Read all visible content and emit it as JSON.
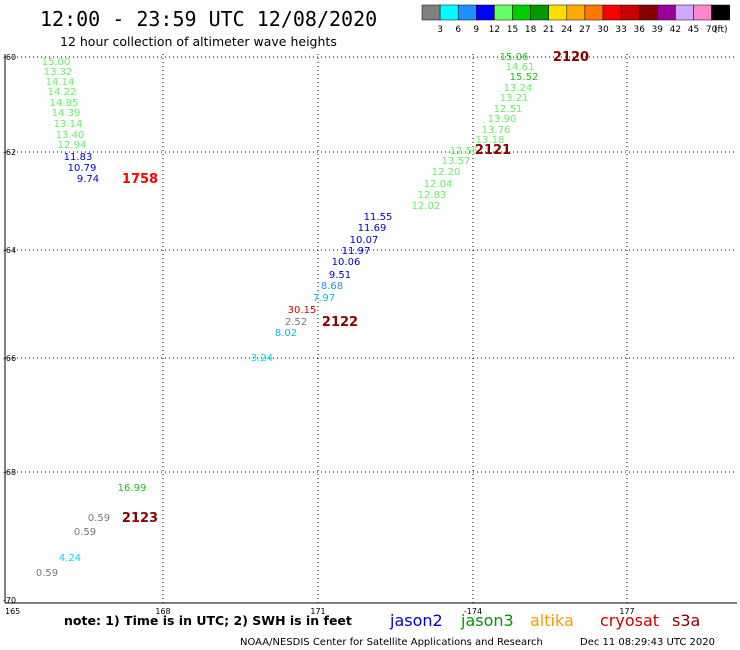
{
  "header": {
    "title": "12:00 - 23:59 UTC 12/08/2020",
    "subtitle": "12 hour collection of altimeter wave heights"
  },
  "legend": {
    "colors": [
      "#808080",
      "#00ffff",
      "#1e90ff",
      "#0000ff",
      "#66ff66",
      "#00cc00",
      "#009900",
      "#ffdd00",
      "#ffaa00",
      "#ff7700",
      "#ff0000",
      "#cc0000",
      "#880000",
      "#990099",
      "#ccaaff",
      "#ff88cc",
      "#000000"
    ],
    "labels": [
      "3",
      "6",
      "9",
      "12",
      "15",
      "18",
      "21",
      "24",
      "27",
      "30",
      "33",
      "36",
      "39",
      "42",
      "45",
      "70"
    ],
    "unit": "(ft)"
  },
  "map": {
    "lat_labels": [
      "-60",
      "-62",
      "-64",
      "-66",
      "-68",
      "-70"
    ],
    "lon_labels": [
      "165",
      "168",
      "171",
      "-174",
      "177"
    ]
  },
  "readings": [
    {
      "value": "15.00",
      "color": "#66ee66"
    },
    {
      "value": "13.32",
      "color": "#66ee66"
    },
    {
      "value": "14.14",
      "color": "#66ee66"
    },
    {
      "value": "14.22",
      "color": "#66ee66"
    },
    {
      "value": "14.85",
      "color": "#66ee66"
    },
    {
      "value": "14.39",
      "color": "#66ee66"
    },
    {
      "value": "13.14",
      "color": "#66ee66"
    },
    {
      "value": "13.40",
      "color": "#66ee66"
    },
    {
      "value": "12.94",
      "color": "#66ee66"
    },
    {
      "value": "11.83",
      "color": "#0000cc"
    },
    {
      "value": "10.79",
      "color": "#0000cc"
    },
    {
      "value": "9.74",
      "color": "#0000cc"
    },
    {
      "value": "15.06",
      "color": "#22bb22"
    },
    {
      "value": "14.61",
      "color": "#66ee66"
    },
    {
      "value": "15.52",
      "color": "#22bb22"
    },
    {
      "value": "13.24",
      "color": "#66ee66"
    },
    {
      "value": "13.21",
      "color": "#66ee66"
    },
    {
      "value": "12.51",
      "color": "#66ee66"
    },
    {
      "value": "13.90",
      "color": "#66ee66"
    },
    {
      "value": "13.76",
      "color": "#66ee66"
    },
    {
      "value": "13.18",
      "color": "#66ee66"
    },
    {
      "value": "12.56",
      "color": "#66ee66"
    },
    {
      "value": "13.57",
      "color": "#66ee66"
    },
    {
      "value": "12.20",
      "color": "#66ee66"
    },
    {
      "value": "12.04",
      "color": "#66ee66"
    },
    {
      "value": "12.83",
      "color": "#66ee66"
    },
    {
      "value": "12.02",
      "color": "#66ee66"
    },
    {
      "value": "11.55",
      "color": "#0000cc"
    },
    {
      "value": "11.69",
      "color": "#0000cc"
    },
    {
      "value": "10.07",
      "color": "#0000cc"
    },
    {
      "value": "11.97",
      "color": "#0000cc"
    },
    {
      "value": "10.06",
      "color": "#0000cc"
    },
    {
      "value": "9.51",
      "color": "#0000cc"
    },
    {
      "value": "8.68",
      "color": "#1e90ff"
    },
    {
      "value": "7.97",
      "color": "#00bbee"
    },
    {
      "value": "30.15",
      "color": "#cc0000"
    },
    {
      "value": "2.52",
      "color": "#777777"
    },
    {
      "value": "8.02",
      "color": "#00bbee"
    },
    {
      "value": "3.24",
      "color": "#00ddee"
    },
    {
      "value": "16.99",
      "color": "#22bb22"
    },
    {
      "value": "0.59",
      "color": "#777777"
    },
    {
      "value": "0.59",
      "color": "#777777"
    },
    {
      "value": "4.24",
      "color": "#00ddee"
    },
    {
      "value": "0.59",
      "color": "#777777"
    }
  ],
  "times": [
    {
      "value": "1758",
      "color": "#ff0000"
    },
    {
      "value": "2120",
      "color": "#880000"
    },
    {
      "value": "2121",
      "color": "#880000"
    },
    {
      "value": "2122",
      "color": "#880000"
    },
    {
      "value": "2123",
      "color": "#880000"
    }
  ],
  "footer": {
    "note": "note: 1) Time is in UTC; 2) SWH is in feet",
    "credit": "NOAA/NESDIS Center for Satellite Applications and Research",
    "timestamp": "Dec 11 08:29:43 UTC 2020",
    "satellites": [
      {
        "name": "jason2",
        "color": "#0000cc"
      },
      {
        "name": "jason3",
        "color": "#009900"
      },
      {
        "name": "altika",
        "color": "#ff9900"
      },
      {
        "name": "cryosat",
        "color": "#cc0000"
      },
      {
        "name": "s3a",
        "color": "#880000"
      }
    ]
  }
}
